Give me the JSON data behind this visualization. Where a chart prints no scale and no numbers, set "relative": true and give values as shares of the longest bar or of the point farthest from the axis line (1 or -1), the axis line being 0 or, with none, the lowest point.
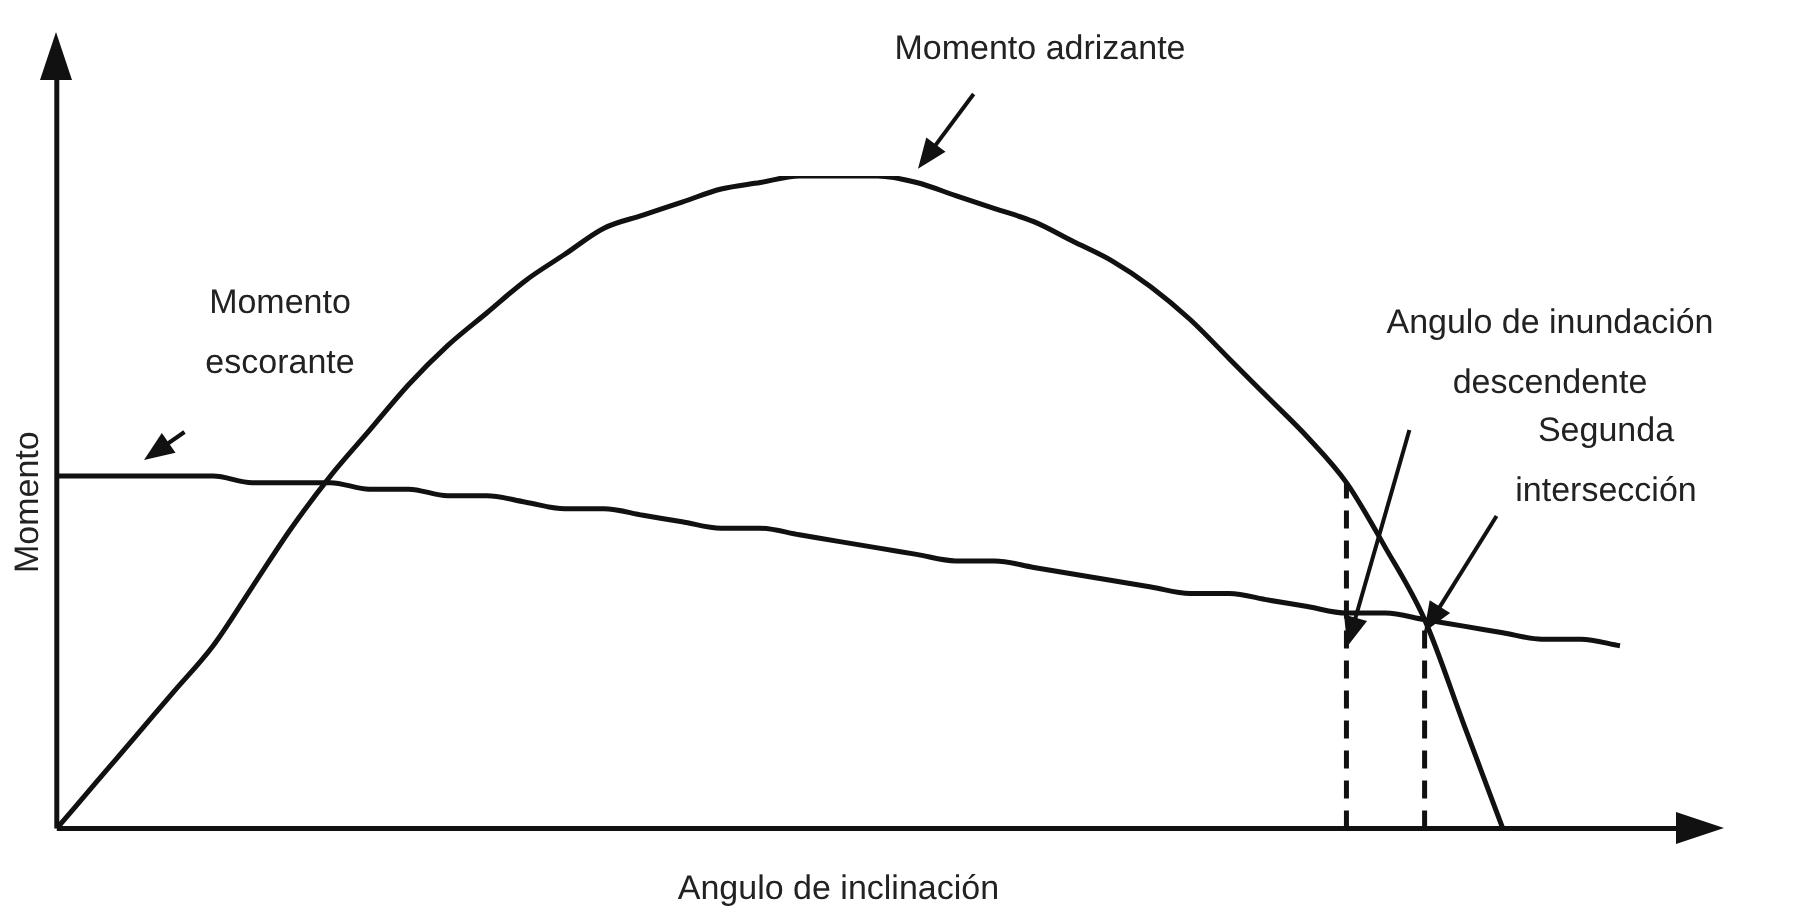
{
  "chart_data": {
    "type": "line",
    "relative": true,
    "xlabel": "Angulo de inclinación",
    "ylabel": "Momento",
    "grid": false,
    "legend": false,
    "marker": "none",
    "categories": [
      null,
      null,
      null,
      null,
      null,
      null,
      null,
      null,
      null,
      null,
      null,
      null,
      null,
      null,
      null,
      null,
      null,
      null,
      null,
      null,
      null,
      null,
      null,
      null,
      null,
      null,
      null,
      null,
      null,
      null,
      null,
      null,
      null,
      null,
      null,
      null,
      null,
      null,
      null,
      null,
      null
    ],
    "series": [
      {
        "color": "#111111",
        "values": [
          0,
          0.07,
          0.14,
          0.21,
          0.28,
          0.37,
          0.46,
          0.54,
          0.61,
          0.68,
          0.74,
          0.79,
          0.84,
          0.88,
          0.92,
          0.94,
          0.96,
          0.98,
          0.99,
          1,
          1,
          1,
          0.99,
          0.97,
          0.95,
          0.93,
          0.9,
          0.87,
          0.83,
          0.78,
          0.72,
          0.66,
          0.6,
          0.53,
          0.43,
          0.32,
          0.16,
          0,
          null,
          null,
          null
        ]
      },
      {
        "color": "#111111",
        "values": [
          0.54,
          0.54,
          0.54,
          0.54,
          0.54,
          0.53,
          0.53,
          0.53,
          0.52,
          0.52,
          0.51,
          0.51,
          0.5,
          0.49,
          0.49,
          0.48,
          0.47,
          0.46,
          0.46,
          0.45,
          0.44,
          0.43,
          0.42,
          0.41,
          0.41,
          0.4,
          0.39,
          0.38,
          0.37,
          0.36,
          0.36,
          0.35,
          0.34,
          0.33,
          0.33,
          0.32,
          0.31,
          0.3,
          0.29,
          0.29,
          0.28
        ]
      }
    ],
    "annotations": [
      "Momento adrizante",
      "Momento\nescorante",
      "Angulo de inundación\ndescendente",
      "Segunda\nintersección"
    ]
  }
}
